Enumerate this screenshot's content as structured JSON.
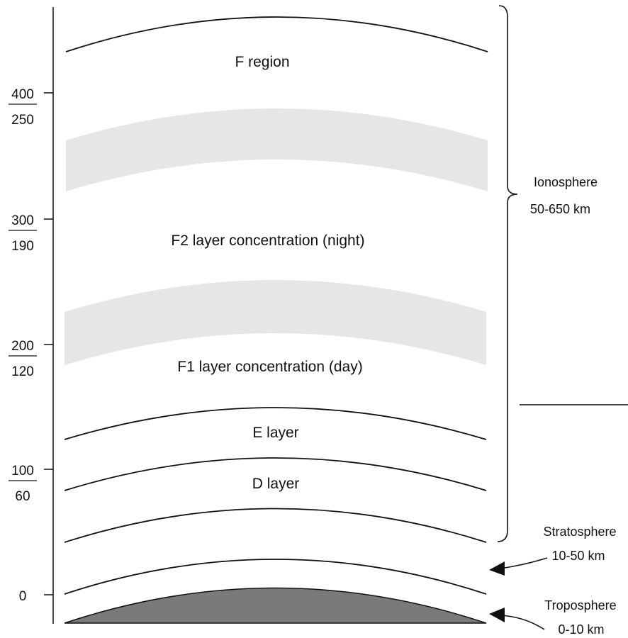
{
  "axis": {
    "ticks": [
      {
        "top": "400",
        "bottom": "250"
      },
      {
        "top": "300",
        "bottom": "190"
      },
      {
        "top": "200",
        "bottom": "120"
      },
      {
        "top": "100",
        "bottom": "60"
      },
      {
        "top": "0",
        "bottom": ""
      }
    ]
  },
  "layers": {
    "f_region": "F region",
    "f2": "F2  layer concentration (night)",
    "f1": "F1  layer concentration (day)",
    "e_layer": "E layer",
    "d_layer": "D layer"
  },
  "side_labels": {
    "ionosphere_name": "Ionosphere",
    "ionosphere_range": "50-650 km",
    "stratosphere_name": "Stratosphere",
    "stratosphere_range": "10-50 km",
    "troposphere_name": "Troposphere",
    "troposphere_range": "0-10 km"
  },
  "colors": {
    "ink": "#111111",
    "band_fill": "#e6e6e6",
    "earth_fill": "#7a7a7a",
    "background": "#ffffff"
  }
}
